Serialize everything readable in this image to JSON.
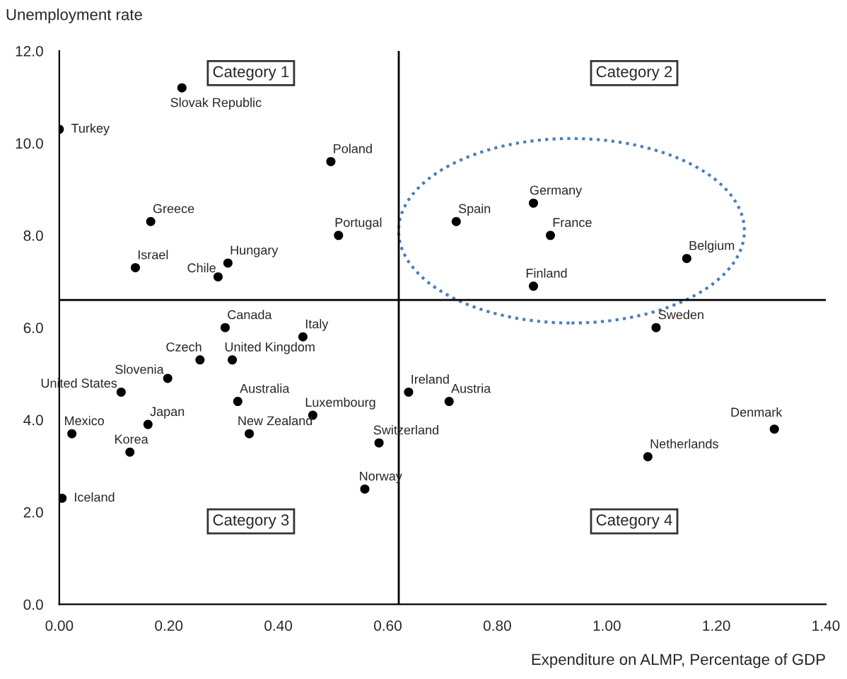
{
  "chart_data": {
    "type": "scatter",
    "xlabel": "Expenditure on ALMP, Percentage of GDP",
    "ylabel": "Unemployment rate",
    "series": [
      {
        "color": "#000000",
        "marker": "circle",
        "x": [
          0.0,
          0.224,
          0.496,
          0.167,
          0.51,
          0.139,
          0.308,
          0.29,
          0.725,
          0.866,
          0.897,
          1.146,
          0.866,
          1.09,
          0.303,
          0.445,
          0.257,
          0.316,
          0.198,
          0.113,
          0.326,
          0.463,
          0.638,
          0.712,
          0.023,
          0.162,
          0.347,
          0.129,
          0.584,
          0.558,
          0.005,
          1.075,
          1.306
        ],
        "values": [
          10.3,
          11.2,
          9.6,
          8.3,
          8.0,
          7.3,
          7.4,
          7.1,
          8.3,
          8.7,
          8.0,
          7.5,
          6.9,
          6.0,
          6.0,
          5.8,
          5.3,
          5.3,
          4.9,
          4.6,
          4.4,
          4.1,
          4.6,
          4.4,
          3.7,
          3.9,
          3.7,
          3.3,
          3.5,
          2.5,
          2.3,
          3.2,
          3.8
        ]
      }
    ],
    "annotations": [
      {
        "text": "Turkey",
        "x": 0.0,
        "y": 10.3
      },
      {
        "text": "Slovak Republic",
        "x": 0.224,
        "y": 11.2
      },
      {
        "text": "Poland",
        "x": 0.496,
        "y": 9.6
      },
      {
        "text": "Greece",
        "x": 0.167,
        "y": 8.3
      },
      {
        "text": "Portugal",
        "x": 0.51,
        "y": 8.0
      },
      {
        "text": "Israel",
        "x": 0.139,
        "y": 7.3
      },
      {
        "text": "Hungary",
        "x": 0.308,
        "y": 7.4
      },
      {
        "text": "Chile",
        "x": 0.29,
        "y": 7.1
      },
      {
        "text": "Spain",
        "x": 0.725,
        "y": 8.3
      },
      {
        "text": "Germany",
        "x": 0.866,
        "y": 8.7
      },
      {
        "text": "France",
        "x": 0.897,
        "y": 8.0
      },
      {
        "text": "Belgium",
        "x": 1.146,
        "y": 7.5
      },
      {
        "text": "Finland",
        "x": 0.866,
        "y": 6.9
      },
      {
        "text": "Sweden",
        "x": 1.09,
        "y": 6.0
      },
      {
        "text": "Canada",
        "x": 0.303,
        "y": 6.0
      },
      {
        "text": "Italy",
        "x": 0.445,
        "y": 5.8
      },
      {
        "text": "Czech",
        "x": 0.257,
        "y": 5.3
      },
      {
        "text": "United Kingdom",
        "x": 0.316,
        "y": 5.3
      },
      {
        "text": "Slovenia",
        "x": 0.198,
        "y": 4.9
      },
      {
        "text": "United States",
        "x": 0.113,
        "y": 4.6
      },
      {
        "text": "Australia",
        "x": 0.326,
        "y": 4.4
      },
      {
        "text": "Luxembourg",
        "x": 0.463,
        "y": 4.1
      },
      {
        "text": "Ireland",
        "x": 0.638,
        "y": 4.6
      },
      {
        "text": "Austria",
        "x": 0.712,
        "y": 4.4
      },
      {
        "text": "Mexico",
        "x": 0.023,
        "y": 3.7
      },
      {
        "text": "Japan",
        "x": 0.162,
        "y": 3.9
      },
      {
        "text": "New Zealand",
        "x": 0.347,
        "y": 3.7
      },
      {
        "text": "Korea",
        "x": 0.129,
        "y": 3.3
      },
      {
        "text": "Switzerland",
        "x": 0.584,
        "y": 3.5
      },
      {
        "text": "Norway",
        "x": 0.558,
        "y": 2.5
      },
      {
        "text": "Iceland",
        "x": 0.005,
        "y": 2.3
      },
      {
        "text": "Netherlands",
        "x": 1.075,
        "y": 3.2
      },
      {
        "text": "Denmark",
        "x": 1.306,
        "y": 3.8
      },
      "Category 1",
      "Category 2",
      "Category 3",
      "Category 4"
    ],
    "ref_lines": [
      {
        "axis": "x",
        "value": 0.62,
        "color": "#000000"
      },
      {
        "axis": "y",
        "value": 6.6,
        "color": "#000000"
      }
    ],
    "xlim": [
      0,
      1.4
    ],
    "ylim": [
      0,
      12
    ],
    "xticks": [
      {
        "value": 0,
        "label": "0.00"
      },
      {
        "value": 0.2,
        "label": "0.20"
      },
      {
        "value": 0.4,
        "label": "0.40"
      },
      {
        "value": 0.6,
        "label": "0.60"
      },
      {
        "value": 0.8,
        "label": "0.80"
      },
      {
        "value": 1.0,
        "label": "1.00"
      },
      {
        "value": 1.2,
        "label": "1.20"
      },
      {
        "value": 1.4,
        "label": "1.40"
      }
    ],
    "yticks": [
      {
        "value": 0,
        "label": "0.0"
      },
      {
        "value": 2,
        "label": "2.0"
      },
      {
        "value": 4,
        "label": "4.0"
      },
      {
        "value": 6,
        "label": "6.0"
      },
      {
        "value": 8,
        "label": "8.0"
      },
      {
        "value": 10,
        "label": "10.0"
      },
      {
        "value": 12,
        "label": "12.0"
      }
    ],
    "grid": false
  }
}
